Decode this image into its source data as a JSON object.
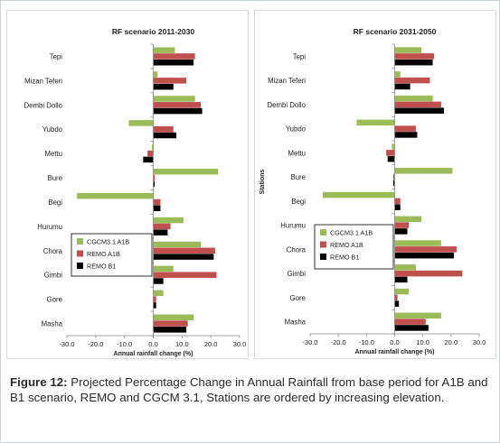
{
  "caption": {
    "label": "Figure 12:",
    "text": "Projected Percentage Change in Annual Rainfall from base period for A1B and B1 scenario, REMO and CGCM 3.1, Stations are ordered by increasing elevation."
  },
  "colors": {
    "CGCM3.1 A1B": "#9bbb59",
    "REMO A1B": "#c0504d",
    "REMO B1": "#000000"
  },
  "chart_data": [
    {
      "type": "bar",
      "orientation": "horizontal",
      "title": "RF scenario 2011-2030",
      "xlabel": "Annual rainfall change (%)",
      "ylabel": "",
      "xlim": [
        -30,
        30
      ],
      "xticks": [
        "-30.0",
        "-20.0",
        "-10.0",
        "0.0",
        "10.0",
        "20.0",
        "30.0"
      ],
      "grid": false,
      "legend_position": "lower-left",
      "categories": [
        "Tepi",
        "Mizan Teferi",
        "Dembi Dollo",
        "Yubdo",
        "Mettu",
        "Bure",
        "Begi",
        "Hurumu",
        "Chora",
        "Gimbi",
        "Gore",
        "Masha"
      ],
      "series": [
        {
          "name": "CGCM3.1 A1B",
          "values": [
            7.5,
            1.5,
            14.5,
            -8.5,
            -0.5,
            22.5,
            -26.5,
            10.5,
            16.5,
            7.0,
            3.5,
            14.0
          ]
        },
        {
          "name": "REMO A1B",
          "values": [
            14.5,
            11.5,
            16.5,
            7.0,
            -2.0,
            0.5,
            2.5,
            6.0,
            21.5,
            22.0,
            1.0,
            12.0
          ]
        },
        {
          "name": "REMO B1",
          "values": [
            14.0,
            7.0,
            17.0,
            8.0,
            -3.5,
            0.5,
            2.5,
            5.0,
            21.0,
            3.5,
            1.0,
            11.5
          ]
        }
      ]
    },
    {
      "type": "bar",
      "orientation": "horizontal",
      "title": "RF scenario 2031-2050",
      "xlabel": "Annual rainfall change (%)",
      "ylabel": "Stations",
      "xlim": [
        -30,
        30
      ],
      "xticks": [
        "-30.0",
        "-20.0",
        "-10.0",
        "0.0",
        "10.0",
        "20.0",
        "30.0"
      ],
      "grid": false,
      "legend_position": "lower-left",
      "categories": [
        "Tepi",
        "Mizan Teferi",
        "Dembi Dollo",
        "Yubdo",
        "Mettu",
        "Bure",
        "Begi",
        "Hurumu",
        "Chora",
        "Gimbi",
        "Gore",
        "Masha"
      ],
      "series": [
        {
          "name": "CGCM3.1 A1B",
          "values": [
            9.5,
            2.0,
            13.5,
            -13.5,
            -1.0,
            20.5,
            -25.5,
            9.5,
            16.5,
            7.5,
            5.0,
            16.5
          ]
        },
        {
          "name": "REMO A1B",
          "values": [
            14.0,
            12.5,
            16.5,
            7.5,
            -3.0,
            -0.5,
            2.0,
            5.0,
            22.0,
            24.0,
            1.0,
            11.0
          ]
        },
        {
          "name": "REMO B1",
          "values": [
            13.5,
            5.5,
            17.5,
            8.0,
            -2.5,
            -0.5,
            2.0,
            4.5,
            21.0,
            4.5,
            1.5,
            12.0
          ]
        }
      ]
    }
  ]
}
